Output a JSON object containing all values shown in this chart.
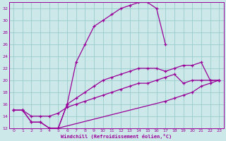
{
  "background_color": "#cce8e8",
  "grid_color": "#99cccc",
  "line_color": "#990099",
  "xlabel": "Windchill (Refroidissement éolien,°C)",
  "xlim": [
    -0.5,
    23.5
  ],
  "ylim": [
    12,
    33
  ],
  "yticks": [
    12,
    14,
    16,
    18,
    20,
    22,
    24,
    26,
    28,
    30,
    32
  ],
  "xticks": [
    0,
    1,
    2,
    3,
    4,
    5,
    6,
    7,
    8,
    9,
    10,
    11,
    12,
    13,
    14,
    15,
    16,
    17,
    18,
    19,
    20,
    21,
    22,
    23
  ],
  "curve_arch_x": [
    0,
    1,
    2,
    3,
    4,
    5,
    6,
    7,
    8,
    9,
    10,
    11,
    12,
    13,
    14,
    15,
    16,
    17
  ],
  "curve_arch_y": [
    15,
    15,
    13,
    13,
    12,
    12,
    16,
    23,
    26,
    29,
    30,
    31,
    32,
    32.5,
    33,
    33,
    32,
    26
  ],
  "curve_lower_x": [
    0,
    1,
    2,
    3,
    4,
    5,
    17,
    18,
    19,
    20,
    21,
    22,
    23
  ],
  "curve_lower_y": [
    15,
    15,
    13,
    13,
    12,
    12,
    16.5,
    17,
    17.5,
    18,
    19,
    19.5,
    20
  ],
  "curve_mid_x": [
    0,
    1,
    2,
    3,
    4,
    5,
    6,
    7,
    8,
    9,
    10,
    11,
    12,
    13,
    14,
    15,
    16,
    17,
    18,
    19,
    20,
    21,
    22,
    23
  ],
  "curve_mid_y": [
    15,
    15,
    14,
    14,
    14,
    14.5,
    15.5,
    16,
    16.5,
    17,
    17.5,
    18,
    18.5,
    19,
    19.5,
    19.5,
    20,
    20.5,
    21,
    19.5,
    20,
    20,
    20,
    20
  ],
  "curve_upper_x": [
    5,
    6,
    7,
    8,
    9,
    10,
    11,
    12,
    13,
    14,
    15,
    16,
    17,
    18,
    19,
    20,
    21,
    22,
    23
  ],
  "curve_upper_y": [
    12,
    16,
    17,
    18,
    19,
    20,
    20.5,
    21,
    21.5,
    22,
    22,
    22,
    21.5,
    22,
    22.5,
    22.5,
    23,
    20,
    20
  ]
}
